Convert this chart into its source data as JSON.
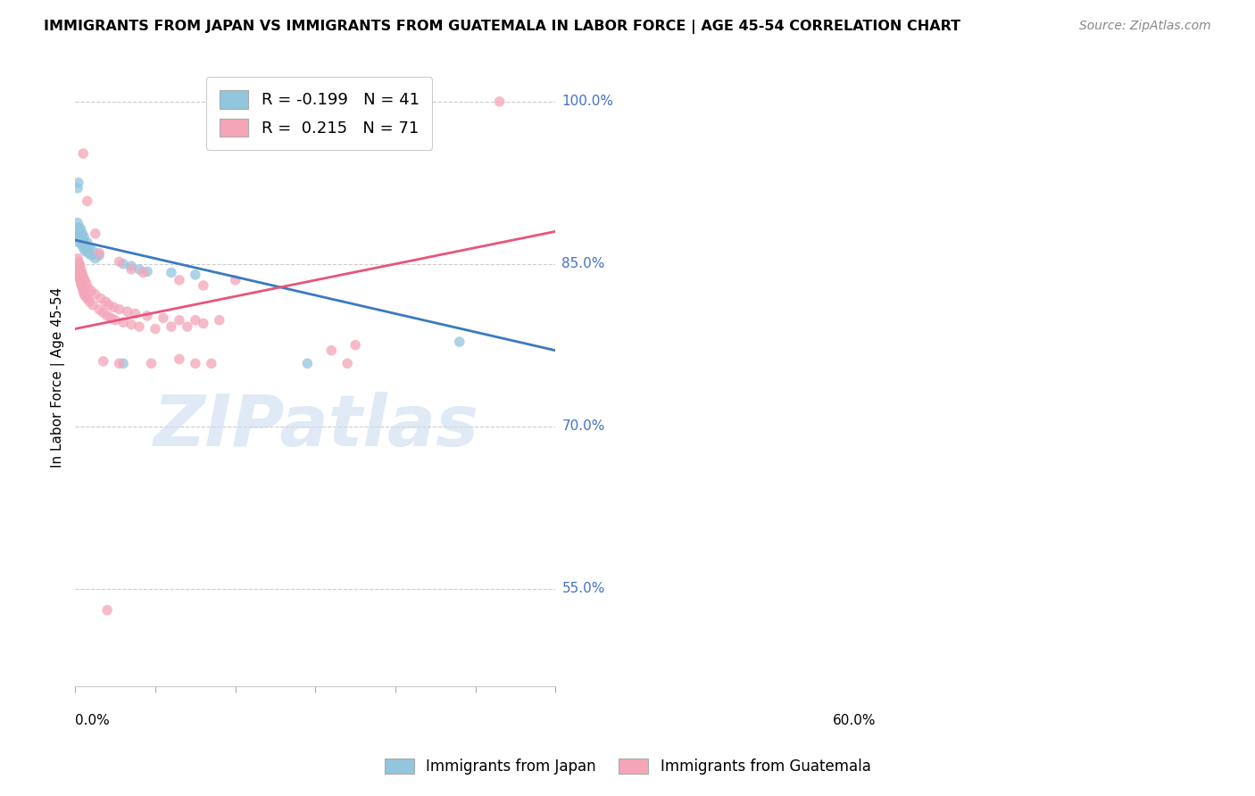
{
  "title": "IMMIGRANTS FROM JAPAN VS IMMIGRANTS FROM GUATEMALA IN LABOR FORCE | AGE 45-54 CORRELATION CHART",
  "source": "Source: ZipAtlas.com",
  "ylabel": "In Labor Force | Age 45-54",
  "ytick_labels": [
    "100.0%",
    "85.0%",
    "70.0%",
    "55.0%"
  ],
  "ytick_values": [
    1.0,
    0.85,
    0.7,
    0.55
  ],
  "xlim": [
    0.0,
    0.6
  ],
  "ylim": [
    0.46,
    1.03
  ],
  "color_japan": "#92c5de",
  "color_guatemala": "#f4a5b8",
  "trendline_japan_color": "#3a7abf",
  "trendline_guatemala_color": "#e8547a",
  "watermark": "ZIPatlas",
  "japan_points": [
    [
      0.001,
      0.878
    ],
    [
      0.002,
      0.882
    ],
    [
      0.003,
      0.875
    ],
    [
      0.003,
      0.888
    ],
    [
      0.004,
      0.87
    ],
    [
      0.004,
      0.88
    ],
    [
      0.005,
      0.876
    ],
    [
      0.005,
      0.884
    ],
    [
      0.006,
      0.872
    ],
    [
      0.006,
      0.878
    ],
    [
      0.007,
      0.875
    ],
    [
      0.007,
      0.882
    ],
    [
      0.008,
      0.868
    ],
    [
      0.008,
      0.875
    ],
    [
      0.009,
      0.87
    ],
    [
      0.009,
      0.878
    ],
    [
      0.01,
      0.865
    ],
    [
      0.01,
      0.872
    ],
    [
      0.011,
      0.868
    ],
    [
      0.011,
      0.875
    ],
    [
      0.012,
      0.862
    ],
    [
      0.013,
      0.868
    ],
    [
      0.014,
      0.865
    ],
    [
      0.015,
      0.87
    ],
    [
      0.016,
      0.86
    ],
    [
      0.018,
      0.865
    ],
    [
      0.02,
      0.858
    ],
    [
      0.022,
      0.862
    ],
    [
      0.003,
      0.92
    ],
    [
      0.004,
      0.925
    ],
    [
      0.025,
      0.855
    ],
    [
      0.03,
      0.858
    ],
    [
      0.06,
      0.85
    ],
    [
      0.07,
      0.848
    ],
    [
      0.08,
      0.845
    ],
    [
      0.09,
      0.843
    ],
    [
      0.12,
      0.842
    ],
    [
      0.15,
      0.84
    ],
    [
      0.06,
      0.758
    ],
    [
      0.48,
      0.778
    ],
    [
      0.29,
      0.758
    ]
  ],
  "guatemala_points": [
    [
      0.001,
      0.845
    ],
    [
      0.002,
      0.848
    ],
    [
      0.003,
      0.842
    ],
    [
      0.003,
      0.855
    ],
    [
      0.004,
      0.84
    ],
    [
      0.004,
      0.852
    ],
    [
      0.005,
      0.838
    ],
    [
      0.005,
      0.85
    ],
    [
      0.006,
      0.835
    ],
    [
      0.006,
      0.848
    ],
    [
      0.007,
      0.832
    ],
    [
      0.007,
      0.845
    ],
    [
      0.008,
      0.83
    ],
    [
      0.008,
      0.842
    ],
    [
      0.009,
      0.828
    ],
    [
      0.009,
      0.84
    ],
    [
      0.01,
      0.825
    ],
    [
      0.01,
      0.838
    ],
    [
      0.011,
      0.822
    ],
    [
      0.012,
      0.835
    ],
    [
      0.013,
      0.82
    ],
    [
      0.014,
      0.832
    ],
    [
      0.015,
      0.818
    ],
    [
      0.016,
      0.828
    ],
    [
      0.018,
      0.815
    ],
    [
      0.02,
      0.825
    ],
    [
      0.022,
      0.812
    ],
    [
      0.025,
      0.822
    ],
    [
      0.03,
      0.808
    ],
    [
      0.032,
      0.818
    ],
    [
      0.035,
      0.805
    ],
    [
      0.038,
      0.815
    ],
    [
      0.04,
      0.802
    ],
    [
      0.042,
      0.812
    ],
    [
      0.045,
      0.8
    ],
    [
      0.048,
      0.81
    ],
    [
      0.05,
      0.798
    ],
    [
      0.055,
      0.808
    ],
    [
      0.06,
      0.796
    ],
    [
      0.065,
      0.806
    ],
    [
      0.07,
      0.794
    ],
    [
      0.075,
      0.804
    ],
    [
      0.08,
      0.792
    ],
    [
      0.09,
      0.802
    ],
    [
      0.1,
      0.79
    ],
    [
      0.11,
      0.8
    ],
    [
      0.12,
      0.792
    ],
    [
      0.13,
      0.798
    ],
    [
      0.14,
      0.792
    ],
    [
      0.15,
      0.798
    ],
    [
      0.16,
      0.795
    ],
    [
      0.18,
      0.798
    ],
    [
      0.01,
      0.952
    ],
    [
      0.015,
      0.908
    ],
    [
      0.025,
      0.878
    ],
    [
      0.03,
      0.86
    ],
    [
      0.055,
      0.852
    ],
    [
      0.07,
      0.845
    ],
    [
      0.085,
      0.842
    ],
    [
      0.13,
      0.835
    ],
    [
      0.16,
      0.83
    ],
    [
      0.2,
      0.835
    ],
    [
      0.035,
      0.76
    ],
    [
      0.055,
      0.758
    ],
    [
      0.095,
      0.758
    ],
    [
      0.13,
      0.762
    ],
    [
      0.15,
      0.758
    ],
    [
      0.17,
      0.758
    ],
    [
      0.32,
      0.77
    ],
    [
      0.34,
      0.758
    ],
    [
      0.35,
      0.775
    ],
    [
      0.53,
      1.0
    ],
    [
      0.04,
      0.53
    ]
  ]
}
